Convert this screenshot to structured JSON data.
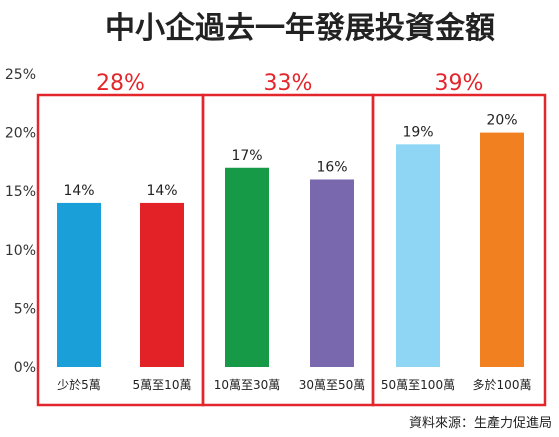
{
  "chart_data": {
    "type": "bar",
    "title": "中小企過去一年發展投資金額",
    "categories": [
      "少於5萬",
      "5萬至10萬",
      "10萬至30萬",
      "30萬至50萬",
      "50萬至100萬",
      "多於100萬"
    ],
    "values": [
      14,
      14,
      17,
      16,
      19,
      20
    ],
    "value_labels": [
      "14%",
      "14%",
      "17%",
      "16%",
      "19%",
      "20%"
    ],
    "yticks": [
      "0%",
      "5%",
      "10%",
      "15%",
      "20%",
      "25%"
    ],
    "ylim": [
      0,
      25
    ],
    "groups": [
      {
        "label": "28%",
        "start": 0,
        "end": 1
      },
      {
        "label": "33%",
        "start": 2,
        "end": 3
      },
      {
        "label": "39%",
        "start": 4,
        "end": 5
      }
    ],
    "source": "資料來源：生產力促進局",
    "colors": {
      "bars": [
        "#1a9fd8",
        "#e32228",
        "#179a48",
        "#7a68ae",
        "#8fd6f5",
        "#f08020"
      ],
      "group_border": "#e3262b",
      "group_label": "#e3262b",
      "title": "#222222",
      "axis_text": "#333333"
    },
    "grid": false,
    "legend": "none"
  }
}
